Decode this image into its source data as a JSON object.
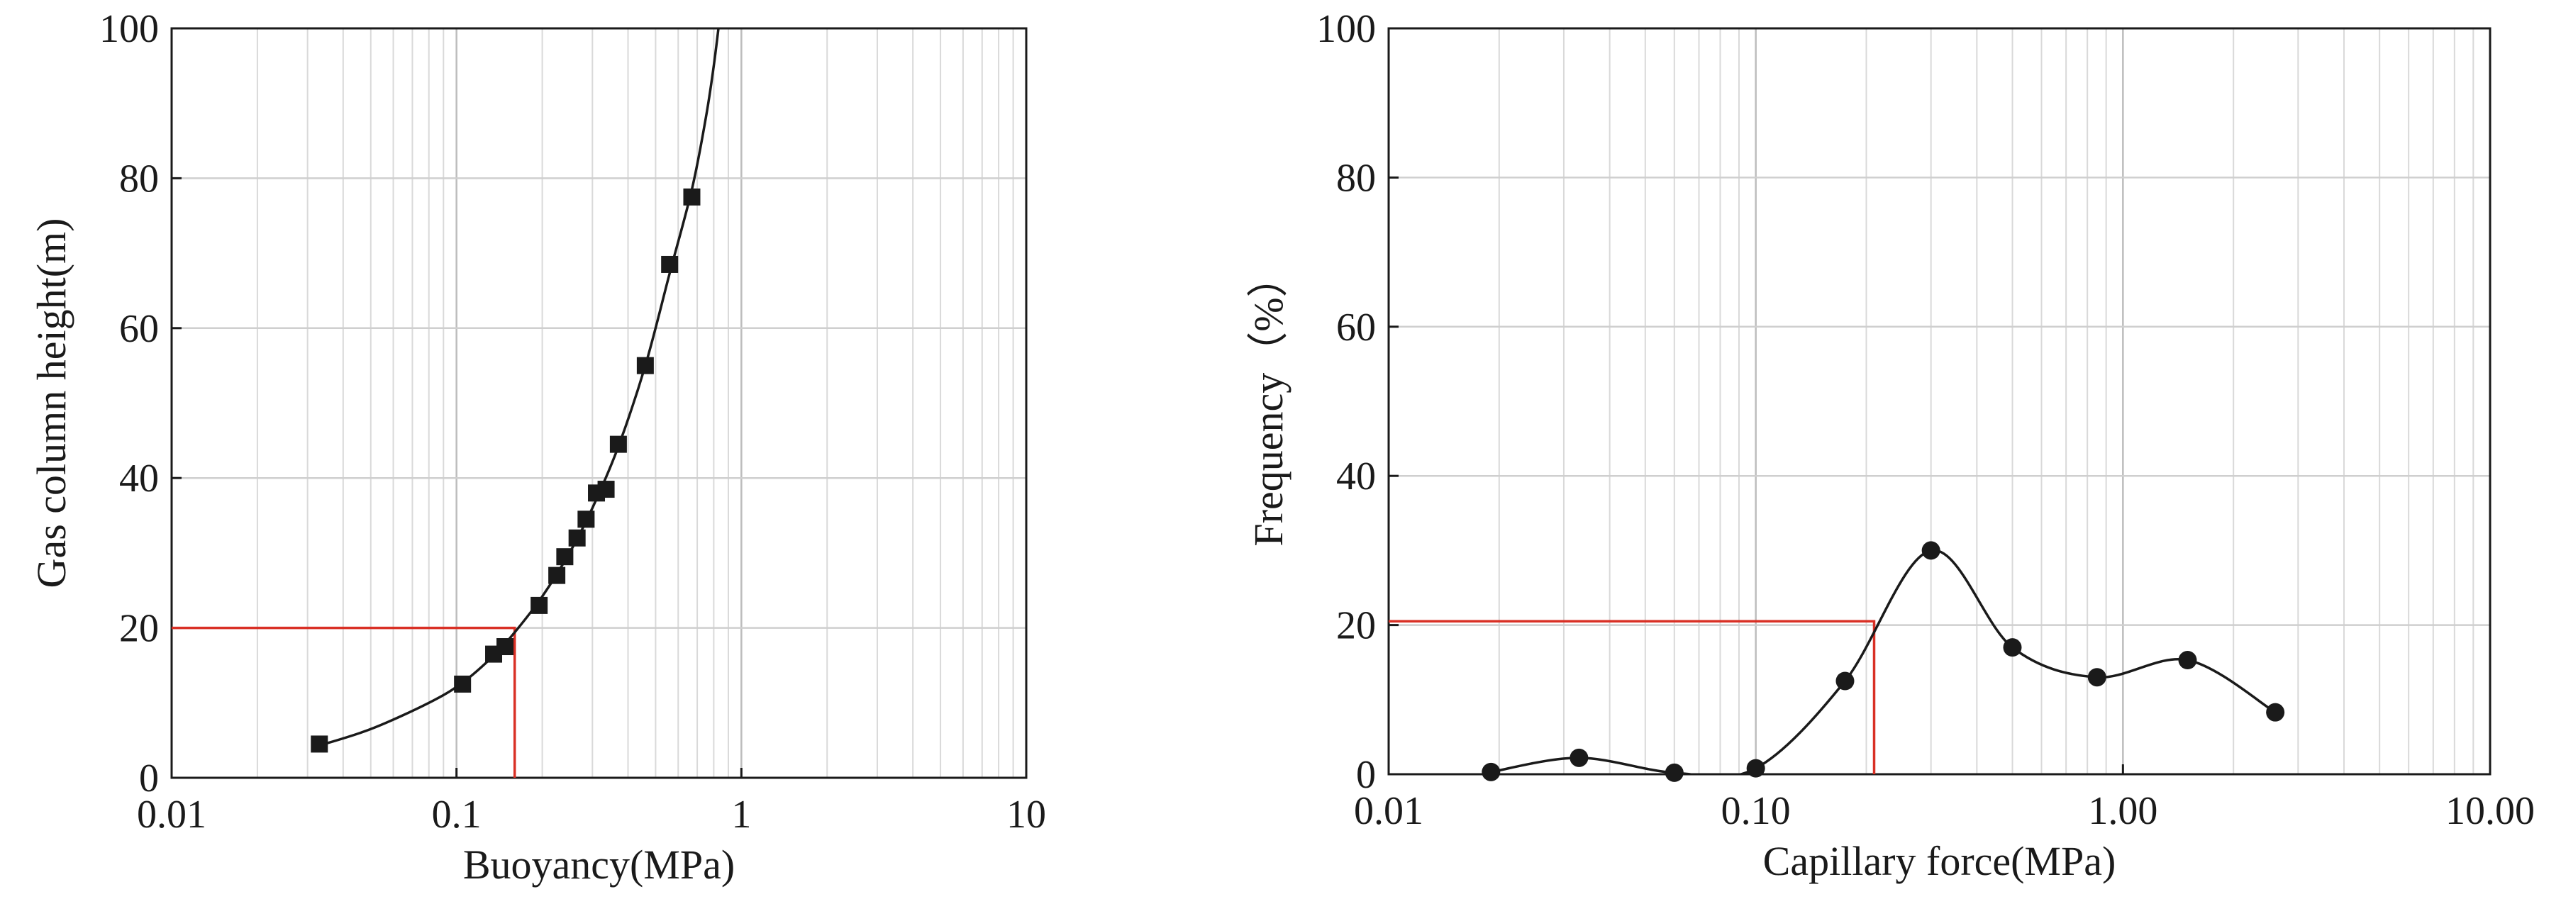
{
  "chart_data": [
    {
      "type": "scatter",
      "title": "",
      "xlabel": "Buoyancy(MPa)",
      "ylabel": "Gas column height(m)",
      "xscale": "log",
      "xlim": [
        0.01,
        10
      ],
      "ylim": [
        0,
        100
      ],
      "xticks": [
        {
          "value": 0.01,
          "label": "0.01"
        },
        {
          "value": 0.1,
          "label": "0.1"
        },
        {
          "value": 1,
          "label": "1"
        },
        {
          "value": 10,
          "label": "10"
        }
      ],
      "yticks": [
        {
          "value": 0,
          "label": "0"
        },
        {
          "value": 20,
          "label": "20"
        },
        {
          "value": 40,
          "label": "40"
        },
        {
          "value": 60,
          "label": "60"
        },
        {
          "value": 80,
          "label": "80"
        },
        {
          "value": 100,
          "label": "100"
        }
      ],
      "grid": true,
      "marker": "square",
      "points": [
        {
          "x": 0.033,
          "y": 4.5
        },
        {
          "x": 0.105,
          "y": 12.5
        },
        {
          "x": 0.135,
          "y": 16.5
        },
        {
          "x": 0.148,
          "y": 17.5
        },
        {
          "x": 0.195,
          "y": 23
        },
        {
          "x": 0.225,
          "y": 27
        },
        {
          "x": 0.24,
          "y": 29.5
        },
        {
          "x": 0.265,
          "y": 32
        },
        {
          "x": 0.285,
          "y": 34.5
        },
        {
          "x": 0.31,
          "y": 38
        },
        {
          "x": 0.335,
          "y": 38.5
        },
        {
          "x": 0.37,
          "y": 44.5
        },
        {
          "x": 0.46,
          "y": 55
        },
        {
          "x": 0.56,
          "y": 68.5
        },
        {
          "x": 0.67,
          "y": 77.5
        }
      ],
      "fit_curve": [
        {
          "x": 0.033,
          "y": 4.3
        },
        {
          "x": 0.05,
          "y": 6.5
        },
        {
          "x": 0.08,
          "y": 10
        },
        {
          "x": 0.105,
          "y": 12.7
        },
        {
          "x": 0.135,
          "y": 16.3
        },
        {
          "x": 0.16,
          "y": 19.4
        },
        {
          "x": 0.2,
          "y": 24.2
        },
        {
          "x": 0.25,
          "y": 30.1
        },
        {
          "x": 0.3,
          "y": 36
        },
        {
          "x": 0.37,
          "y": 44.2
        },
        {
          "x": 0.46,
          "y": 55
        },
        {
          "x": 0.56,
          "y": 67.3
        },
        {
          "x": 0.67,
          "y": 78.5
        },
        {
          "x": 0.75,
          "y": 88
        },
        {
          "x": 0.8,
          "y": 95
        },
        {
          "x": 0.84,
          "y": 101.5
        }
      ],
      "reference_lines": [
        {
          "x": 0.16,
          "y": 20,
          "color": "#d93025"
        }
      ]
    },
    {
      "type": "line",
      "title": "",
      "xlabel": "Capillary force(MPa)",
      "ylabel": "Frequency（%）",
      "xscale": "log",
      "xlim": [
        0.01,
        10
      ],
      "ylim": [
        0,
        100
      ],
      "xticks": [
        {
          "value": 0.01,
          "label": "0.01"
        },
        {
          "value": 0.1,
          "label": "0.10"
        },
        {
          "value": 1,
          "label": "1.00"
        },
        {
          "value": 10,
          "label": "10.00"
        }
      ],
      "yticks": [
        {
          "value": 0,
          "label": "0"
        },
        {
          "value": 20,
          "label": "20"
        },
        {
          "value": 40,
          "label": "40"
        },
        {
          "value": 60,
          "label": "60"
        },
        {
          "value": 80,
          "label": "80"
        },
        {
          "value": 100,
          "label": "100"
        }
      ],
      "grid": true,
      "marker": "circle",
      "points": [
        {
          "x": 0.019,
          "y": 0.3
        },
        {
          "x": 0.033,
          "y": 2.2
        },
        {
          "x": 0.06,
          "y": 0.2
        },
        {
          "x": 0.1,
          "y": 0.8
        },
        {
          "x": 0.175,
          "y": 12.5
        },
        {
          "x": 0.3,
          "y": 30
        },
        {
          "x": 0.5,
          "y": 17
        },
        {
          "x": 0.85,
          "y": 13
        },
        {
          "x": 1.5,
          "y": 15.3
        },
        {
          "x": 2.6,
          "y": 8.3
        }
      ],
      "reference_lines": [
        {
          "x": 0.21,
          "y": 20.5,
          "color": "#d93025"
        }
      ]
    }
  ]
}
